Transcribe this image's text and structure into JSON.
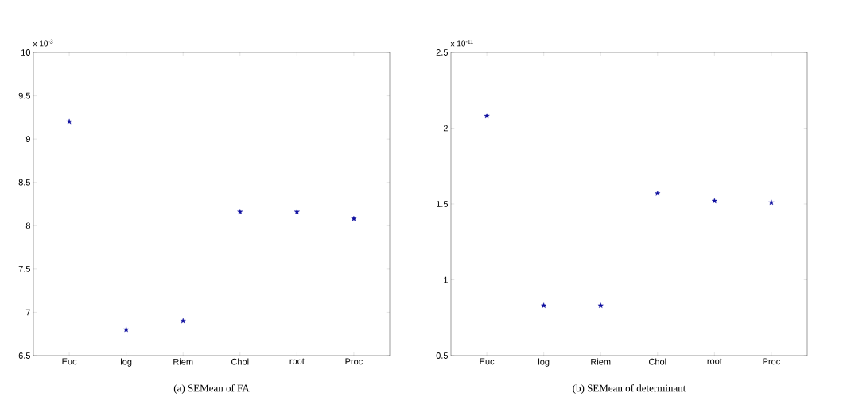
{
  "chart_data": [
    {
      "type": "scatter",
      "title": "(a) SEMean of FA",
      "annotations": [
        "x 10$^{-3}$"
      ],
      "categories": [
        "Euc",
        "log",
        "Riem",
        "Chol",
        "root",
        "Proc"
      ],
      "values": [
        9.2,
        6.8,
        6.9,
        8.16,
        8.16,
        8.08
      ],
      "color": "#1010a0",
      "marker": "star",
      "ylim": [
        6.5,
        10
      ],
      "yticks": [
        6.5,
        7,
        7.5,
        8,
        8.5,
        9,
        9.5,
        10
      ],
      "grid": false
    },
    {
      "type": "scatter",
      "title": "(b) SEMean of determinant",
      "annotations": [
        "x 10$^{-11}$"
      ],
      "categories": [
        "Euc",
        "log",
        "Riem",
        "Chol",
        "root",
        "Proc"
      ],
      "values": [
        2.08,
        0.83,
        0.83,
        1.57,
        1.52,
        1.51
      ],
      "color": "#1010a0",
      "marker": "star",
      "ylim": [
        0.5,
        2.5
      ],
      "yticks": [
        0.5,
        1,
        1.5,
        2,
        2.5
      ],
      "grid": false
    }
  ]
}
